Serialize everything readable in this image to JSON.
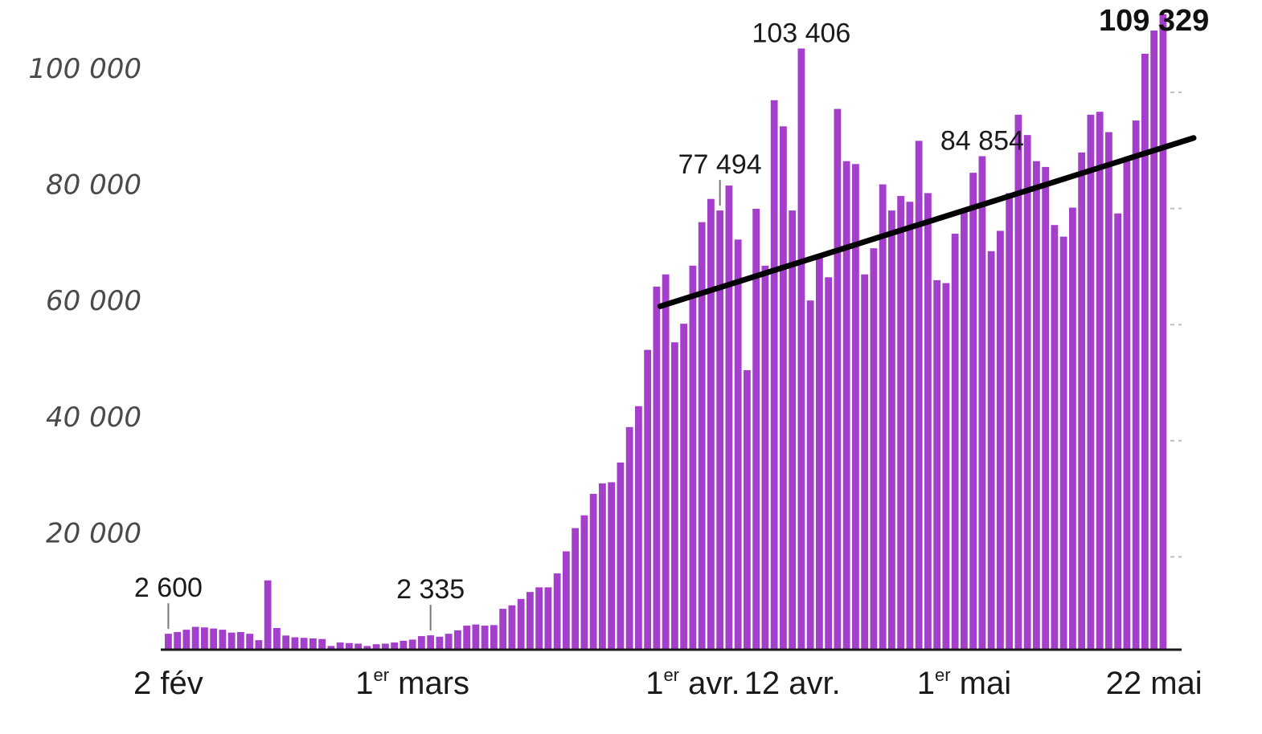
{
  "chart_data": {
    "type": "bar",
    "title": "",
    "xlabel": "",
    "ylabel": "",
    "ylim": [
      0,
      110000
    ],
    "grid": false,
    "legend": "none",
    "bar_color": "#a43fcc",
    "trend_color": "#000000",
    "yticks": [
      {
        "value": 20000,
        "label": "20 000"
      },
      {
        "value": 40000,
        "label": "40 000"
      },
      {
        "value": 60000,
        "label": "60 000"
      },
      {
        "value": 80000,
        "label": "80 000"
      },
      {
        "value": 100000,
        "label": "100 000"
      }
    ],
    "xticks": [
      {
        "index": 0,
        "label": "2 fév",
        "sup": ""
      },
      {
        "index": 27,
        "label": "mars",
        "sup": "er",
        "pre": "1"
      },
      {
        "index": 58,
        "label": "avr.",
        "sup": "er",
        "pre": "1"
      },
      {
        "index": 69,
        "label": "12 avr.",
        "sup": ""
      },
      {
        "index": 88,
        "label": "mai",
        "sup": "er",
        "pre": "1"
      },
      {
        "index": 109,
        "label": "22 mai",
        "sup": ""
      }
    ],
    "annotations": [
      {
        "index": 0,
        "label": "2 600",
        "bold": false,
        "leader": true
      },
      {
        "index": 29,
        "label": "2 335",
        "bold": false,
        "leader": true
      },
      {
        "index": 61,
        "label": "77 494",
        "bold": false,
        "leader": true
      },
      {
        "index": 70,
        "label": "103 406",
        "bold": false,
        "leader": false
      },
      {
        "index": 90,
        "label": "84 854",
        "bold": false,
        "leader": false
      },
      {
        "index": 109,
        "label": "109 329",
        "bold": true,
        "leader": false
      }
    ],
    "values": [
      2600,
      2900,
      3300,
      3800,
      3700,
      3500,
      3300,
      2800,
      2900,
      2600,
      1500,
      11800,
      3600,
      2300,
      2000,
      1900,
      1800,
      1700,
      500,
      1100,
      1000,
      900,
      500,
      800,
      900,
      1100,
      1400,
      1600,
      2200,
      2335,
      2100,
      2600,
      3200,
      4000,
      4200,
      4000,
      4100,
      6900,
      7500,
      8600,
      9800,
      10600,
      10600,
      13000,
      16800,
      20800,
      23000,
      26700,
      28500,
      28700,
      32100,
      38200,
      41800,
      51500,
      62400,
      64500,
      52800,
      56000,
      66000,
      73500,
      77494,
      75500,
      79800,
      70500,
      48000,
      75800,
      66000,
      94500,
      90000,
      75500,
      103406,
      60000,
      68000,
      64000,
      93000,
      84000,
      83500,
      64500,
      69000,
      80000,
      75500,
      78000,
      77000,
      87500,
      78500,
      63500,
      63000,
      71500,
      75500,
      82000,
      84854,
      68500,
      72000,
      78500,
      92000,
      88500,
      84000,
      83000,
      73000,
      71000,
      76000,
      85500,
      92000,
      92500,
      89000,
      75000,
      84000,
      91000,
      102500,
      106500,
      109329
    ],
    "trendline": {
      "from_index": 53,
      "from_value": 59000,
      "to_index": 112,
      "to_value": 88000
    }
  }
}
